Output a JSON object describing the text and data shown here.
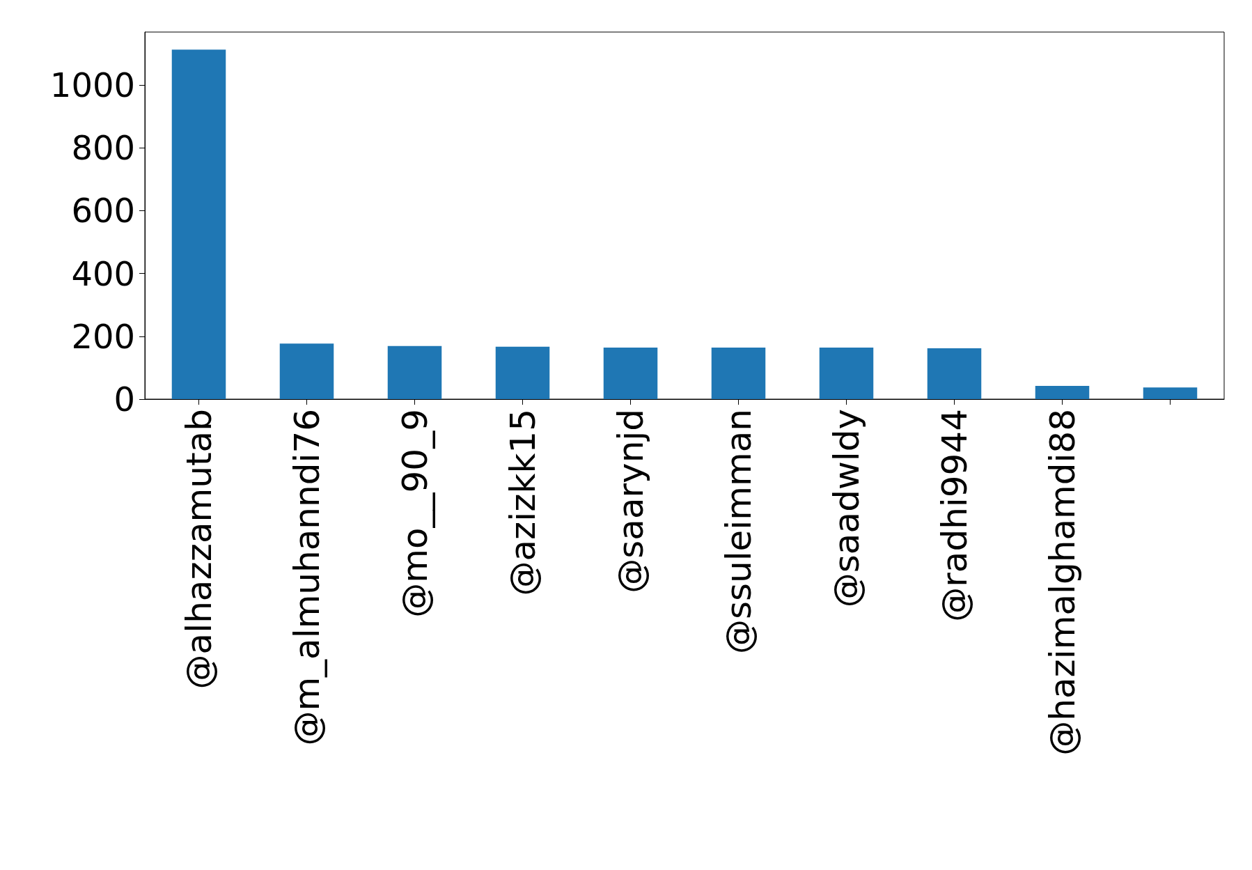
{
  "chart_data": {
    "type": "bar",
    "categories": [
      "@alhazzamutab",
      "@m_almuhanndi76",
      "@mo__90_9",
      "@azizkk15",
      "@saarynjd",
      "@ssuleimman",
      "@saadwldy",
      "@radhi9944",
      "@hazimalghamdi88",
      null
    ],
    "values": [
      1112,
      177,
      169,
      167,
      164,
      164,
      164,
      162,
      42,
      37
    ],
    "color": "#1f77b4",
    "ylim": [
      0,
      1168
    ],
    "yticks": [
      0,
      200,
      400,
      600,
      800,
      1000
    ],
    "grid": false
  }
}
